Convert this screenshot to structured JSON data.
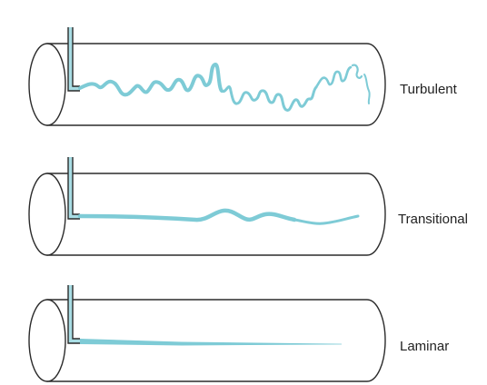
{
  "diagram": {
    "regimes": [
      {
        "id": "turbulent",
        "label": "Turbulent"
      },
      {
        "id": "transitional",
        "label": "Transitional"
      },
      {
        "id": "laminar",
        "label": "Laminar"
      }
    ]
  },
  "colors": {
    "dye": "#7ecbd6",
    "injector": "#a9dde4",
    "outline": "#2b2b2b",
    "background": "#ffffff"
  }
}
